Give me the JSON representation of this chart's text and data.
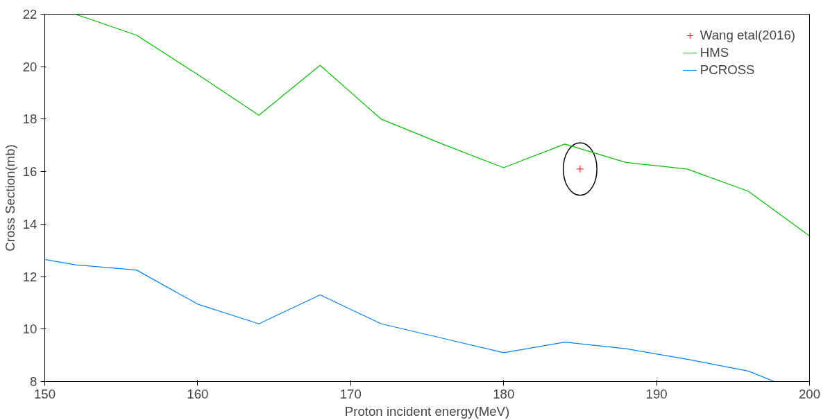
{
  "chart_data": {
    "type": "line",
    "xlabel": "Proton incident energy(MeV)",
    "ylabel": "Cross Section(mb)",
    "xlim": [
      150,
      200
    ],
    "ylim": [
      8,
      22
    ],
    "xticks": [
      150,
      160,
      170,
      180,
      190,
      200
    ],
    "yticks": [
      8,
      10,
      12,
      14,
      16,
      18,
      20,
      22
    ],
    "grid": false,
    "legend": "top right",
    "series": [
      {
        "name": "Wang etal(2016)",
        "type": "scatter",
        "marker": "cross",
        "color": "#ff0000",
        "x": [
          185
        ],
        "values": [
          16.1
        ]
      },
      {
        "name": "HMS",
        "color": "#00c000",
        "x": [
          152,
          156,
          160,
          164,
          168,
          172,
          176,
          180,
          184,
          188,
          192,
          196,
          200
        ],
        "values": [
          22,
          21.2,
          19.7,
          18.15,
          20.05,
          18.0,
          17.05,
          16.15,
          17.05,
          16.35,
          16.1,
          15.25,
          13.55
        ]
      },
      {
        "name": "PCROSS",
        "color": "#0080ff",
        "x": [
          150,
          152,
          156,
          160,
          164,
          168,
          172,
          176,
          180,
          184,
          188,
          192,
          196,
          197.7
        ],
        "values": [
          12.65,
          12.45,
          12.25,
          10.95,
          10.2,
          11.3,
          10.2,
          9.65,
          9.1,
          9.5,
          9.25,
          8.85,
          8.4,
          8.0
        ]
      }
    ]
  }
}
